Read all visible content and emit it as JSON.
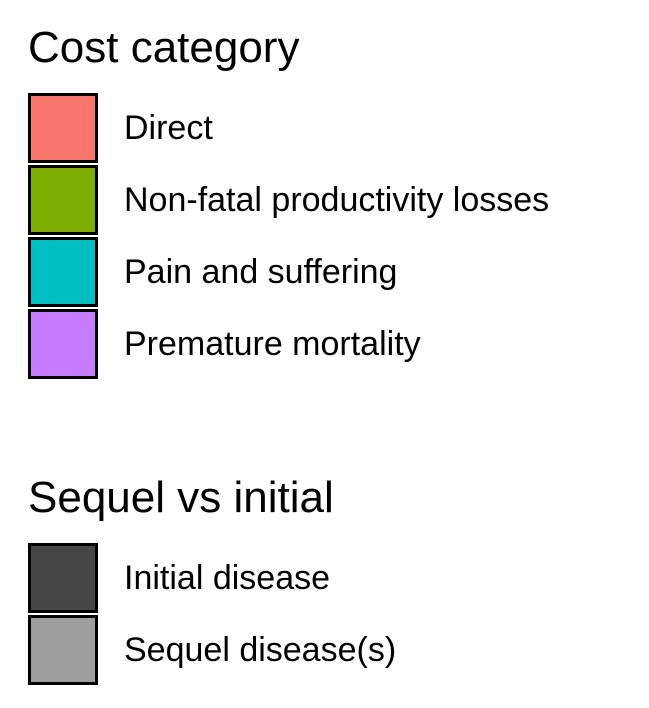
{
  "chart_data": {
    "type": "bar",
    "legends": [
      {
        "title": "Cost category",
        "items": [
          {
            "label": "Direct",
            "color": "#F8766D"
          },
          {
            "label": "Non-fatal productivity losses",
            "color": "#7CAE00"
          },
          {
            "label": "Pain and suffering",
            "color": "#00BFC4"
          },
          {
            "label": "Premature mortality",
            "color": "#C77CFF"
          }
        ]
      },
      {
        "title": "Sequel vs initial",
        "items": [
          {
            "label": "Initial disease",
            "color": "#474747"
          },
          {
            "label": "Sequel disease(s)",
            "color": "#9E9E9E"
          }
        ]
      }
    ]
  }
}
